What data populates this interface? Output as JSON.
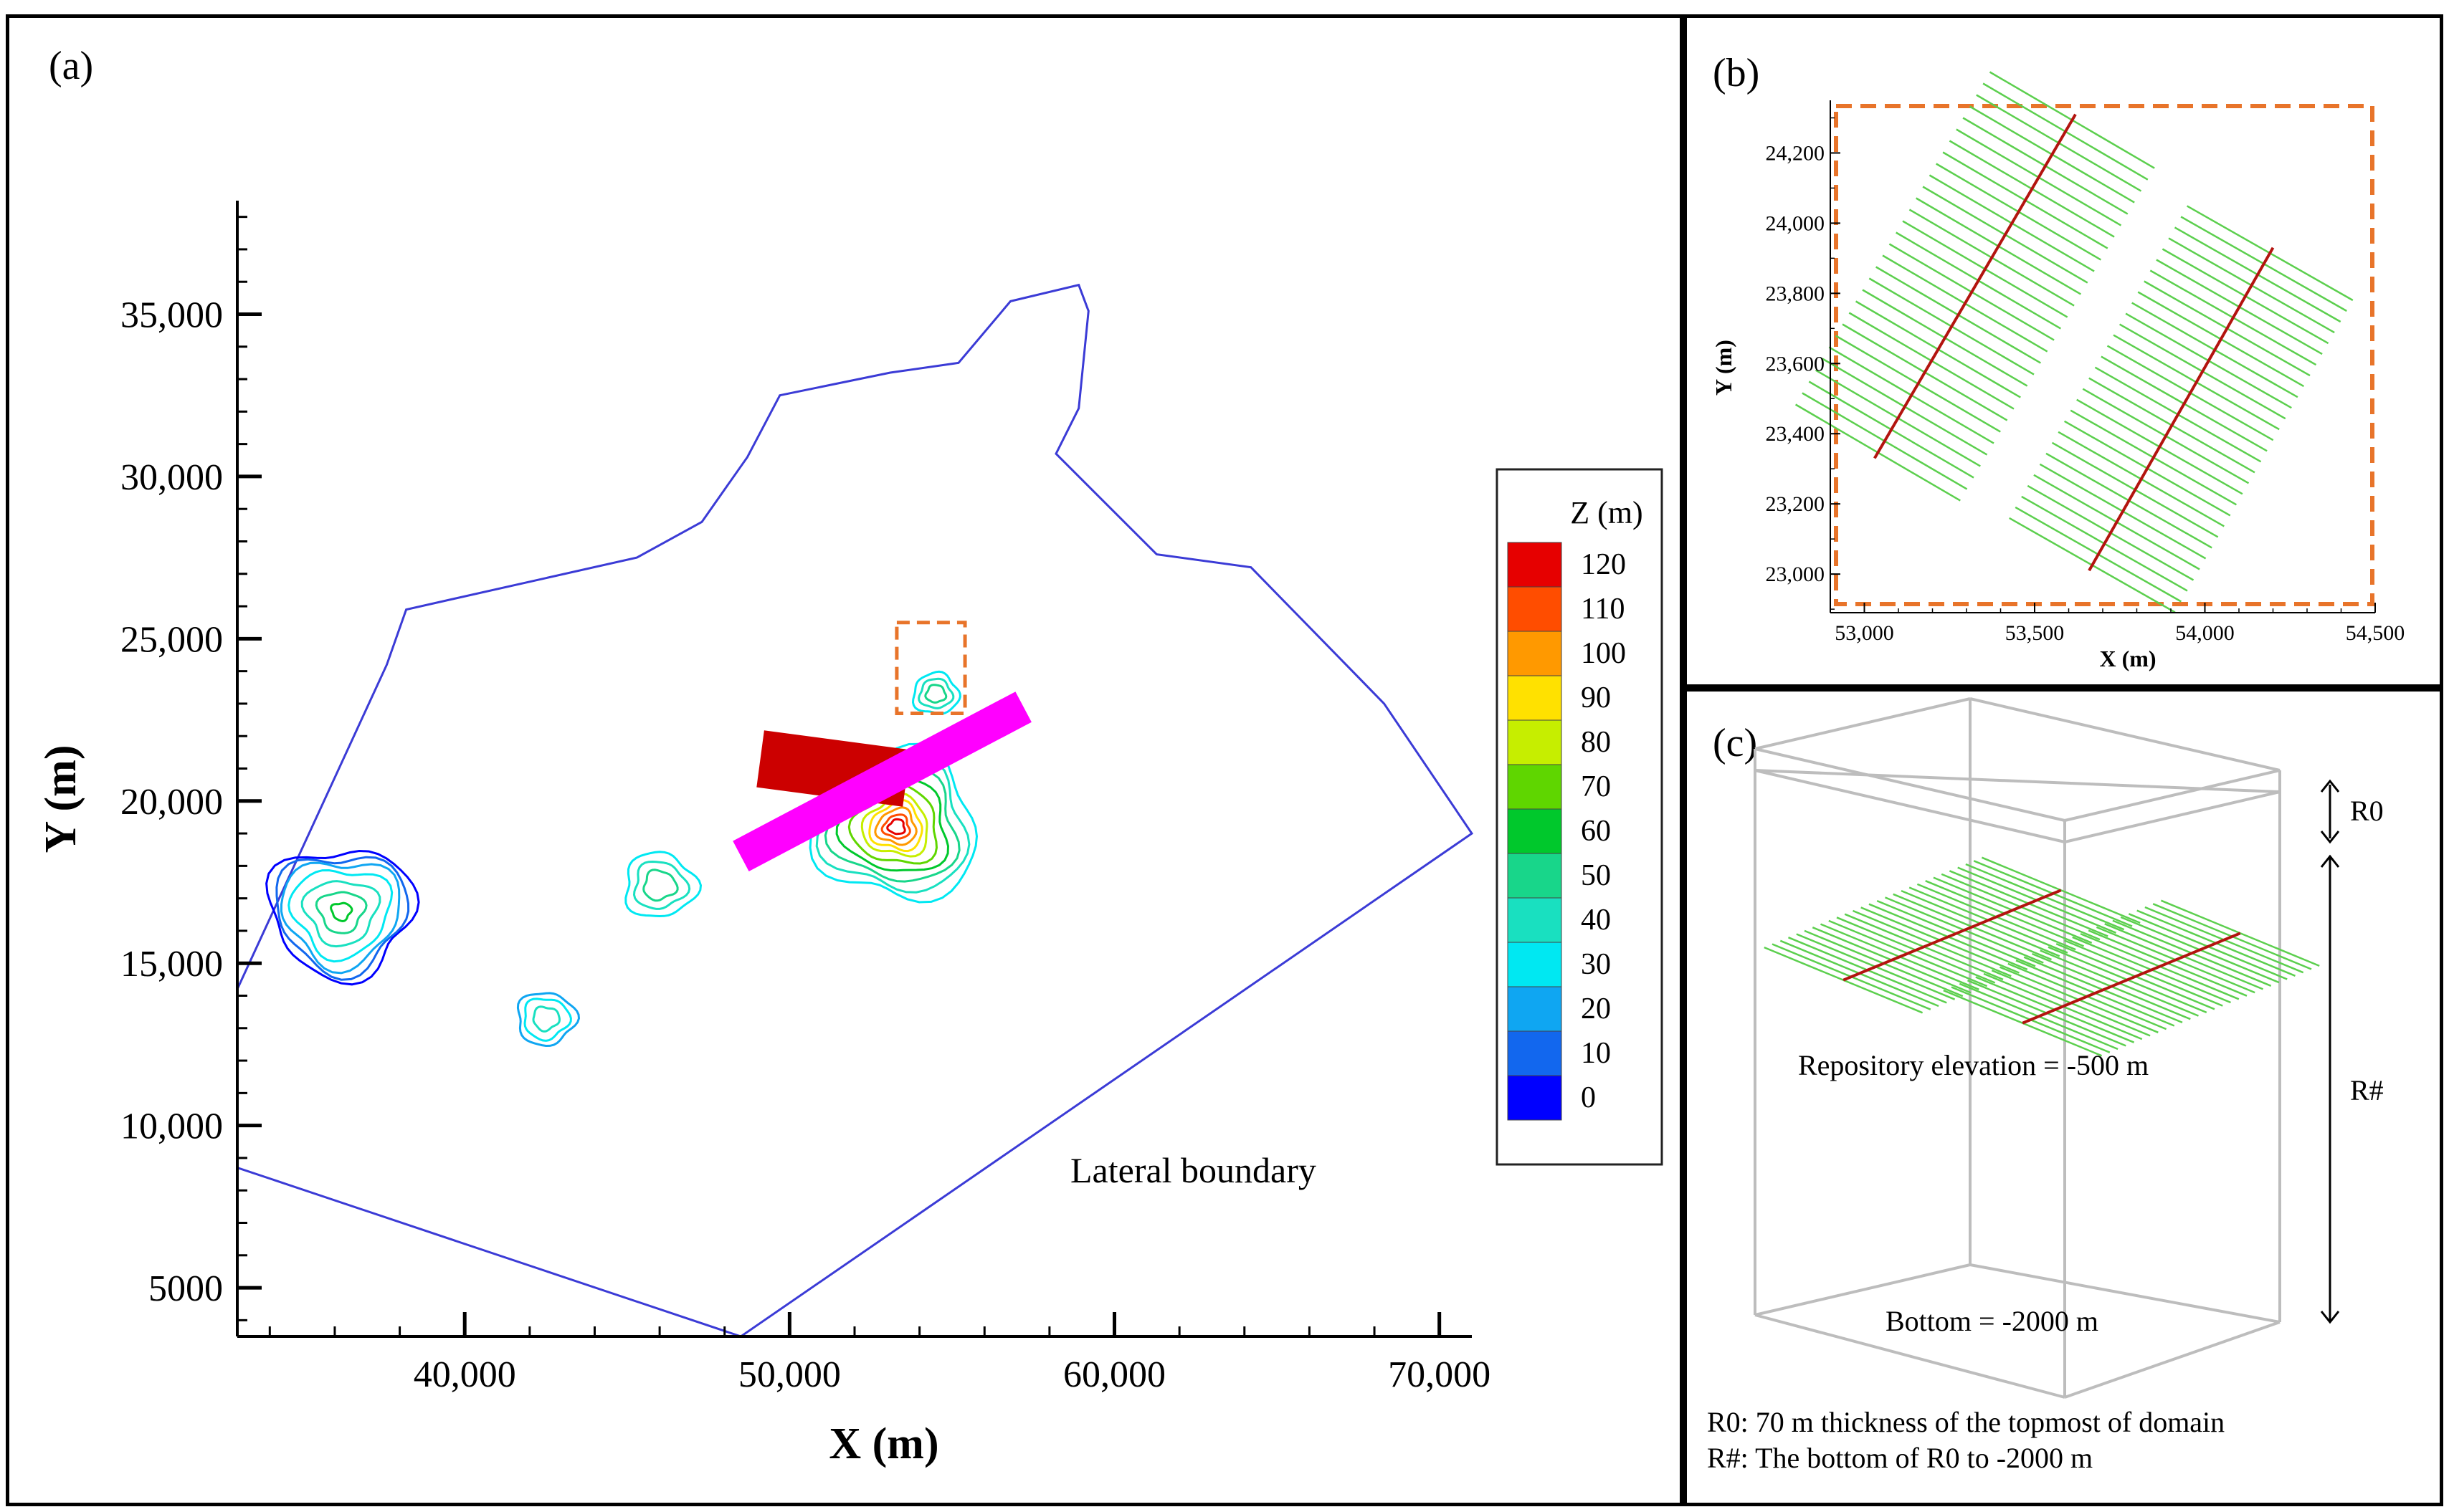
{
  "panel_a": {
    "label": "(a)",
    "annotation": "Lateral boundary"
  },
  "panel_b": {
    "label": "(b)"
  },
  "panel_c": {
    "label": "(c)",
    "r0_label": "R0",
    "rhash_label": "R#",
    "repository_text": "Repository elevation = -500 m",
    "bottom_text": "Bottom = -2000 m",
    "note1": "R0: 70 m thickness of the topmost of domain",
    "note2": "R#: The bottom of R0 to -2000 m"
  },
  "colors": {
    "boundary": "#3b3bd6",
    "magenta_bar": "#ff00ff",
    "red_bar": "#cc0000",
    "dashed_box": "#e8742a",
    "tunnel_green": "#5ccf4e",
    "tunnel_red": "#b3140f",
    "box_gray": "#bdbdbd"
  },
  "chart_data": [
    {
      "id": "panel-a",
      "type": "contour",
      "title": "",
      "xlabel": "X (m)",
      "ylabel": "Y (m)",
      "xlim": [
        33000,
        71000
      ],
      "ylim": [
        3500,
        38500
      ],
      "xticks": [
        40000,
        50000,
        60000,
        70000
      ],
      "xtick_labels": [
        "40,000",
        "50,000",
        "60,000",
        "70,000"
      ],
      "yticks": [
        5000,
        10000,
        15000,
        20000,
        25000,
        30000,
        35000
      ],
      "ytick_labels": [
        "5000",
        "10,000",
        "15,000",
        "20,000",
        "25,000",
        "30,000",
        "35,000"
      ],
      "legend": {
        "title": "Z (m)",
        "levels": [
          120,
          110,
          100,
          90,
          80,
          70,
          60,
          50,
          40,
          30,
          20,
          10,
          0
        ],
        "level_labels": [
          "120",
          "110",
          "100",
          "90",
          "80",
          "70",
          "60",
          "50",
          "40",
          "30",
          "20",
          "10",
          "0"
        ],
        "colors": [
          "#e60000",
          "#ff4d00",
          "#ff9900",
          "#ffe100",
          "#c6ee00",
          "#5fd600",
          "#00c82c",
          "#18d68a",
          "#19e0c0",
          "#00e8f2",
          "#0fa6f2",
          "#1267ee",
          "#0000ff"
        ]
      },
      "boundary": [
        [
          33000,
          14200
        ],
        [
          37600,
          24200
        ],
        [
          38200,
          25900
        ],
        [
          45300,
          27500
        ],
        [
          47300,
          28600
        ],
        [
          48700,
          30600
        ],
        [
          49700,
          32500
        ],
        [
          53100,
          33200
        ],
        [
          55200,
          33500
        ],
        [
          56800,
          35400
        ],
        [
          58900,
          35900
        ],
        [
          59200,
          35100
        ],
        [
          58900,
          32100
        ],
        [
          58200,
          30700
        ],
        [
          61300,
          27600
        ],
        [
          64200,
          27200
        ],
        [
          68300,
          23000
        ],
        [
          71000,
          19000
        ],
        [
          48500,
          3500
        ],
        [
          33000,
          8700
        ]
      ],
      "contour_blobs": [
        {
          "center": [
            36200,
            16600
          ],
          "radii": [
            2200,
            2000,
            1800,
            1500,
            1100,
            700,
            300
          ],
          "levels": [
            0,
            10,
            20,
            30,
            40,
            50,
            60
          ]
        },
        {
          "center": [
            42500,
            13300
          ],
          "radii": [
            900,
            700,
            400
          ],
          "levels": [
            20,
            30,
            40
          ]
        },
        {
          "center": [
            46000,
            17400
          ],
          "radii": [
            1100,
            800,
            500
          ],
          "levels": [
            30,
            40,
            50
          ]
        },
        {
          "center": [
            54500,
            23300
          ],
          "radii": [
            700,
            500,
            300
          ],
          "levels": [
            30,
            40,
            50
          ]
        },
        {
          "center": [
            53300,
            19200
          ],
          "radii": [
            2500,
            2200,
            1900,
            1600,
            1300,
            1000,
            800,
            600,
            400,
            250
          ],
          "levels": [
            30,
            40,
            50,
            60,
            70,
            80,
            90,
            100,
            110,
            120
          ]
        }
      ],
      "dashed_box": {
        "x": [
          53300,
          55400
        ],
        "y": [
          22700,
          25500
        ]
      },
      "magenta_bar": {
        "from": [
          48500,
          18300
        ],
        "to": [
          57200,
          22900
        ]
      },
      "red_bar": {
        "from": [
          49100,
          21300
        ],
        "to": [
          53600,
          20700
        ]
      }
    },
    {
      "id": "panel-b",
      "type": "line",
      "xlabel": "X (m)",
      "ylabel": "Y (m)",
      "xlim": [
        52900,
        54500
      ],
      "ylim": [
        22890,
        24350
      ],
      "xticks": [
        53000,
        53500,
        54000,
        54500
      ],
      "xtick_labels": [
        "53,000",
        "53,500",
        "54,000",
        "54,500"
      ],
      "yticks": [
        23000,
        23200,
        23400,
        23600,
        23800,
        24000,
        24200
      ],
      "ytick_labels": [
        "23,000",
        "23,200",
        "23,400",
        "23,600",
        "23,800",
        "24,000",
        "24,200"
      ],
      "tunnel_groups": [
        {
          "main_from": [
            53030,
            23330
          ],
          "main_to": [
            53620,
            24310
          ],
          "n_lateral": 30,
          "half_length": 280
        },
        {
          "main_from": [
            53660,
            23010
          ],
          "main_to": [
            54200,
            23930
          ],
          "n_lateral": 30,
          "half_length": 280
        }
      ]
    }
  ]
}
